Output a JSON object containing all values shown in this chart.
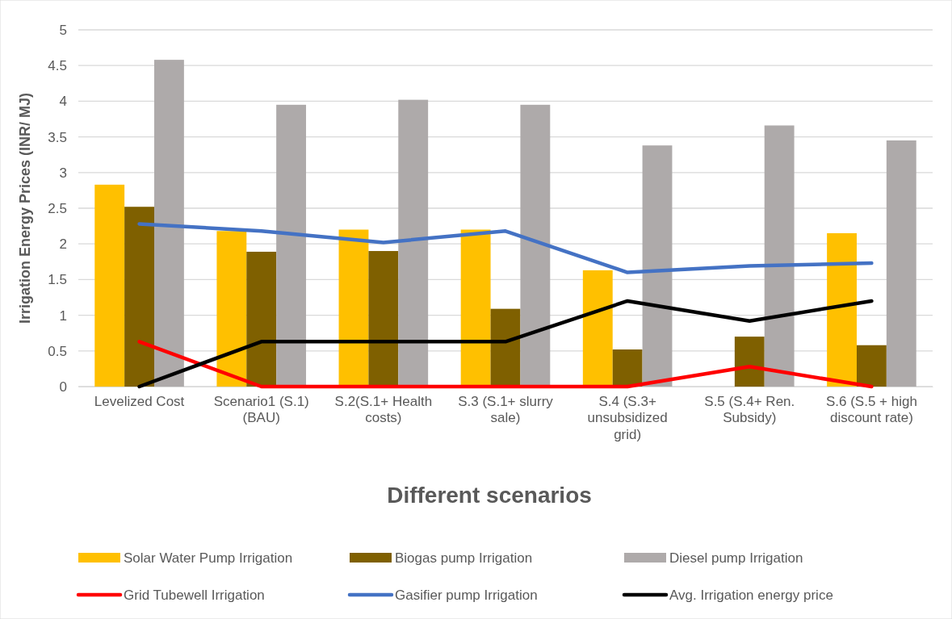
{
  "chart_data": {
    "type": "bar",
    "xlabel": "Different scenarios",
    "ylabel": "Irrigation Energy Prices (INR/ MJ)",
    "categories": [
      "Levelized Cost",
      "Scenario1 (S.1) (BAU)",
      "S.2(S.1+ Health costs)",
      "S.3 (S.1+ slurry sale)",
      "S.4 (S.3+ unsubsidized grid)",
      "S.5 (S.4+ Ren. Subsidy)",
      "S.6 (S.5 + high discount rate)"
    ],
    "series": [
      {
        "name": "Solar Water Pump Irrigation",
        "color": "#ffc000",
        "values": [
          2.83,
          2.18,
          2.2,
          2.2,
          1.63,
          0,
          2.15
        ]
      },
      {
        "name": "Biogas pump Irrigation",
        "color": "#7f6000",
        "values": [
          2.52,
          1.89,
          1.9,
          1.09,
          0.52,
          0.7,
          0.58
        ]
      },
      {
        "name": "Diesel pump Irrigation",
        "color": "#aeaaaa",
        "values": [
          4.58,
          3.95,
          4.02,
          3.95,
          3.38,
          3.66,
          3.45
        ]
      },
      {
        "name": "Grid Tubewell Irrigation",
        "type": "line",
        "color": "#ff0000",
        "values": [
          0.63,
          0,
          0,
          0,
          0,
          0.28,
          0
        ]
      },
      {
        "name": "Gasifier pump Irrigation",
        "type": "line",
        "color": "#4472c4",
        "values": [
          2.28,
          2.18,
          2.02,
          2.18,
          1.6,
          1.69,
          1.73
        ]
      },
      {
        "name": "Avg. Irrigation energy price",
        "type": "line",
        "color": "#000000",
        "values": [
          0,
          0.63,
          0.63,
          0.63,
          1.2,
          0.92,
          1.2
        ]
      }
    ],
    "ylim": [
      0,
      5
    ],
    "yticks": [
      0,
      0.5,
      1,
      1.5,
      2,
      2.5,
      3,
      3.5,
      4,
      4.5,
      5
    ],
    "grid": "y",
    "legend": "bottom",
    "marker": "none",
    "line_style": "solid"
  }
}
